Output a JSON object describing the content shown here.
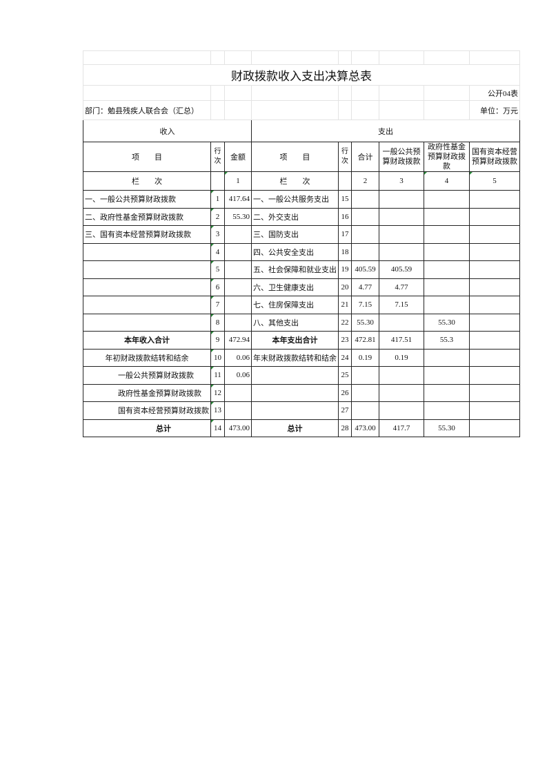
{
  "title": "财政拨款收入支出决算总表",
  "form_no": "公开04表",
  "department": "部门：勉县残疾人联合会（汇总）",
  "unit": "单位：万元",
  "headers": {
    "income": "收入",
    "expense": "支出",
    "item": "项　　目",
    "row_no": "行次",
    "amount": "金额",
    "total": "合计",
    "general": "一般公共预算财政拨款",
    "gov_fund": "政府性基金预算财政拨款",
    "state_capital": "国有资本经营预算财政拨款",
    "column_label": "栏　　次",
    "col1": "1",
    "col2": "2",
    "col3": "3",
    "col4": "4",
    "col5": "5"
  },
  "rows": [
    {
      "in_item": "一、一般公共预算财政拨款",
      "in_no": "1",
      "in_amt": "417.64",
      "ex_item": "一、一般公共服务支出",
      "ex_no": "15",
      "total": "",
      "general": "",
      "gov_fund": "",
      "state_capital": ""
    },
    {
      "in_item": "二、政府性基金预算财政拨款",
      "in_no": "2",
      "in_amt": "55.30",
      "ex_item": "二、外交支出",
      "ex_no": "16",
      "total": "",
      "general": "",
      "gov_fund": "",
      "state_capital": ""
    },
    {
      "in_item": "三、国有资本经营预算财政拨款",
      "in_no": "3",
      "in_amt": "",
      "ex_item": "三、国防支出",
      "ex_no": "17",
      "total": "",
      "general": "",
      "gov_fund": "",
      "state_capital": ""
    },
    {
      "in_item": "",
      "in_no": "4",
      "in_amt": "",
      "ex_item": "四、公共安全支出",
      "ex_no": "18",
      "total": "",
      "general": "",
      "gov_fund": "",
      "state_capital": ""
    },
    {
      "in_item": "",
      "in_no": "5",
      "in_amt": "",
      "ex_item": "五、社会保障和就业支出",
      "ex_no": "19",
      "total": "405.59",
      "general": "405.59",
      "gov_fund": "",
      "state_capital": ""
    },
    {
      "in_item": "",
      "in_no": "6",
      "in_amt": "",
      "ex_item": "六、卫生健康支出",
      "ex_no": "20",
      "total": "4.77",
      "general": "4.77",
      "gov_fund": "",
      "state_capital": ""
    },
    {
      "in_item": "",
      "in_no": "7",
      "in_amt": "",
      "ex_item": "七、住房保障支出",
      "ex_no": "21",
      "total": "7.15",
      "general": "7.15",
      "gov_fund": "",
      "state_capital": ""
    },
    {
      "in_item": "",
      "in_no": "8",
      "in_amt": "",
      "ex_item": "八、其他支出",
      "ex_no": "22",
      "total": "55.30",
      "general": "",
      "gov_fund": "55.30",
      "state_capital": ""
    },
    {
      "in_item": "本年收入合计",
      "in_no": "9",
      "in_amt": "472.94",
      "ex_item": "本年支出合计",
      "ex_no": "23",
      "total": "472.81",
      "general": "417.51",
      "gov_fund": "55.3",
      "state_capital": ""
    },
    {
      "in_item": "年初财政拨款结转和结余",
      "in_no": "10",
      "in_amt": "0.06",
      "ex_item": "年末财政拨款结转和结余",
      "ex_no": "24",
      "total": "0.19",
      "general": "0.19",
      "gov_fund": "",
      "state_capital": ""
    },
    {
      "in_item": "一般公共预算财政拨款",
      "in_no": "11",
      "in_amt": "0.06",
      "ex_item": "",
      "ex_no": "25",
      "total": "",
      "general": "",
      "gov_fund": "",
      "state_capital": ""
    },
    {
      "in_item": "政府性基金预算财政拨款",
      "in_no": "12",
      "in_amt": "",
      "ex_item": "",
      "ex_no": "26",
      "total": "",
      "general": "",
      "gov_fund": "",
      "state_capital": ""
    },
    {
      "in_item": "国有资本经营预算财政拨款",
      "in_no": "13",
      "in_amt": "",
      "ex_item": "",
      "ex_no": "27",
      "total": "",
      "general": "",
      "gov_fund": "",
      "state_capital": ""
    },
    {
      "in_item": "总计",
      "in_no": "14",
      "in_amt": "473.00",
      "ex_item": "总计",
      "ex_no": "28",
      "total": "473.00",
      "general": "417.7",
      "gov_fund": "55.30",
      "state_capital": ""
    }
  ]
}
